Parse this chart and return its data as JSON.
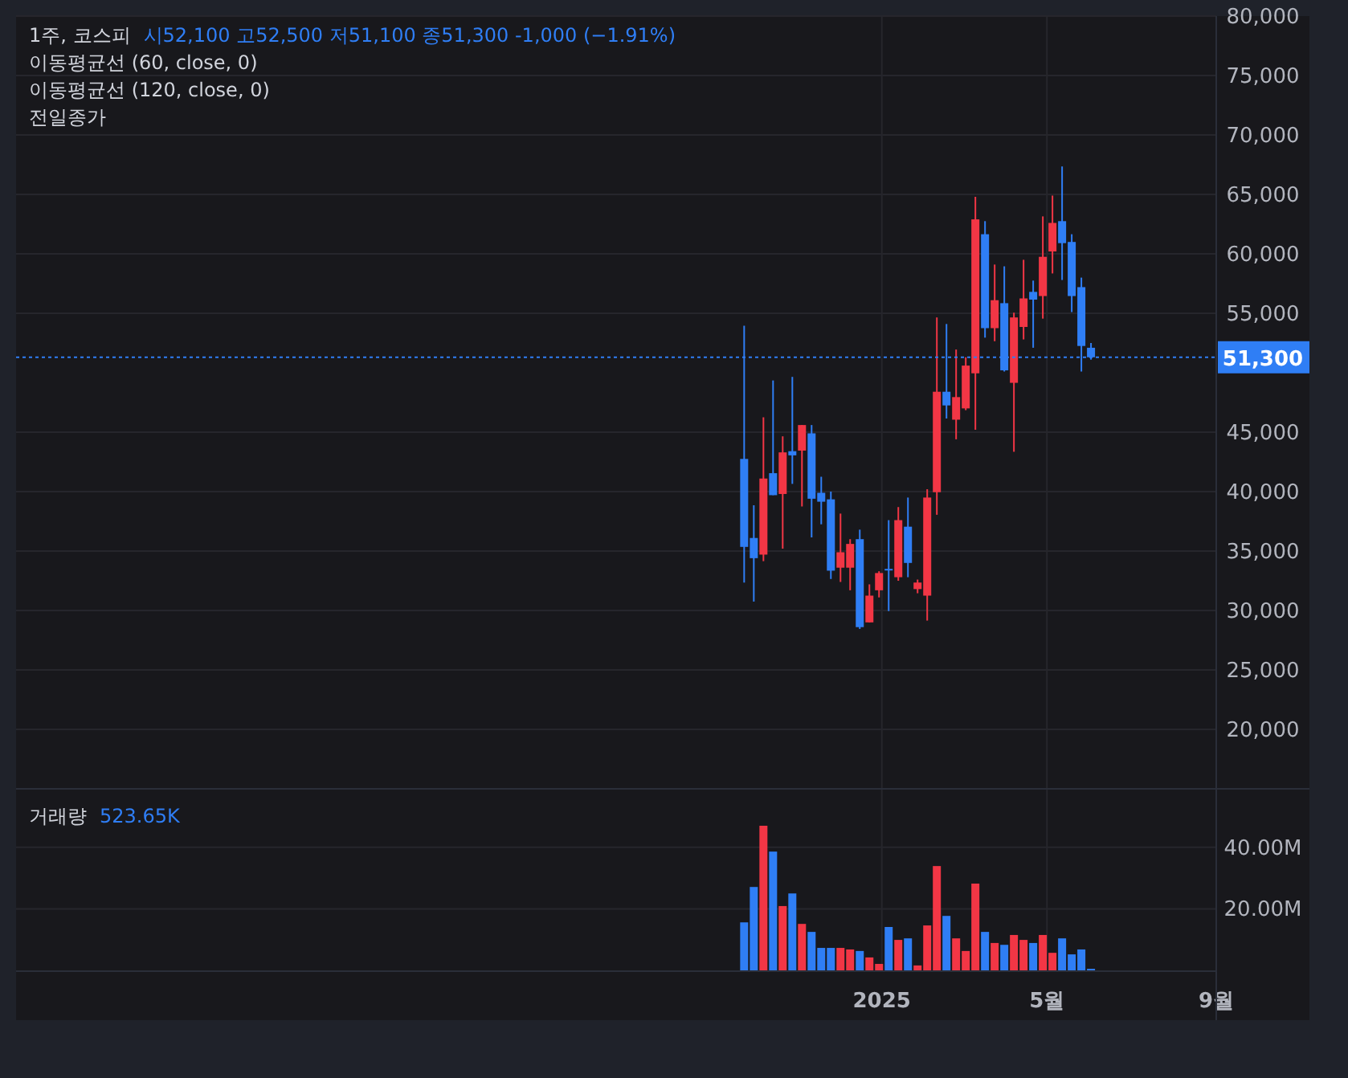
{
  "chart_data": [
    {
      "type": "candlestick",
      "title": "1주, 코스피",
      "annotations": [
        "시52,100 고52,500 저51,100 종51,300 -1,000 (−1.91%)",
        "이동평균선 (60, close, 0)",
        "이동평균선 (120, close, 0)",
        "전일종가"
      ],
      "x": [
        "2024-09-23",
        "2024-09-30",
        "2024-10-07",
        "2024-10-14",
        "2024-10-21",
        "2024-10-28",
        "2024-11-04",
        "2024-11-11",
        "2024-11-18",
        "2024-11-25",
        "2024-12-02",
        "2024-12-09",
        "2024-12-16",
        "2024-12-23",
        "2024-12-30",
        "2025-01-06",
        "2025-01-13",
        "2025-01-20",
        "2025-01-27",
        "2025-02-03",
        "2025-02-10",
        "2025-02-17",
        "2025-02-24",
        "2025-03-03",
        "2025-03-10",
        "2025-03-17",
        "2025-03-24",
        "2025-03-31",
        "2025-04-07",
        "2025-04-14",
        "2025-04-21",
        "2025-04-28",
        "2025-05-05",
        "2025-05-12",
        "2025-05-19",
        "2025-05-26",
        "2025-06-02"
      ],
      "ohlc": [
        [
          42750,
          53950,
          32350,
          35350
        ],
        [
          36100,
          38850,
          30750,
          34400
        ],
        [
          34700,
          46250,
          34150,
          41100
        ],
        [
          41550,
          49350,
          39700,
          39700
        ],
        [
          39800,
          44650,
          35200,
          43300
        ],
        [
          43400,
          49650,
          40650,
          43050
        ],
        [
          43450,
          45600,
          38750,
          45600
        ],
        [
          44900,
          45600,
          36150,
          39400
        ],
        [
          39900,
          41250,
          37250,
          39150
        ],
        [
          39350,
          40000,
          32650,
          33350
        ],
        [
          33600,
          38150,
          32400,
          34900
        ],
        [
          33600,
          36000,
          31700,
          35600
        ],
        [
          36000,
          36800,
          28450,
          28600
        ],
        [
          29000,
          32200,
          29000,
          31250
        ],
        [
          31700,
          33300,
          31100,
          33150
        ],
        [
          33500,
          37600,
          29950,
          33400
        ],
        [
          32800,
          38700,
          32500,
          37600
        ],
        [
          37050,
          39500,
          32800,
          34000
        ],
        [
          31800,
          32600,
          31450,
          32350
        ],
        [
          31250,
          40200,
          29150,
          39500
        ],
        [
          39950,
          54650,
          38050,
          48400
        ],
        [
          48400,
          54100,
          46150,
          47250
        ],
        [
          46050,
          51950,
          44400,
          47950
        ],
        [
          47000,
          51300,
          46850,
          50600
        ],
        [
          49950,
          64800,
          45200,
          62900
        ],
        [
          61650,
          62750,
          52950,
          53750
        ],
        [
          53750,
          59100,
          52650,
          56100
        ],
        [
          55850,
          58950,
          50100,
          50200
        ],
        [
          49150,
          55050,
          43350,
          54650
        ],
        [
          53850,
          59500,
          52800,
          56250
        ],
        [
          56800,
          57750,
          52100,
          56150
        ],
        [
          56450,
          63150,
          54550,
          59750
        ],
        [
          60200,
          64900,
          58350,
          62600
        ],
        [
          62750,
          67350,
          57800,
          60900
        ],
        [
          61000,
          61650,
          55100,
          56450
        ],
        [
          57200,
          58000,
          50100,
          52250
        ],
        [
          52100,
          52500,
          51100,
          51300
        ]
      ],
      "colors": [
        "#2f7ef5",
        "#2f7ef5",
        "#f23645",
        "#2f7ef5",
        "#f23645",
        "#2f7ef5",
        "#f23645",
        "#2f7ef5",
        "#2f7ef5",
        "#2f7ef5",
        "#f23645",
        "#f23645",
        "#2f7ef5",
        "#f23645",
        "#f23645",
        "#2f7ef5",
        "#f23645",
        "#2f7ef5",
        "#f23645",
        "#f23645",
        "#f23645",
        "#2f7ef5",
        "#f23645",
        "#f23645",
        "#f23645",
        "#2f7ef5",
        "#f23645",
        "#2f7ef5",
        "#f23645",
        "#f23645",
        "#2f7ef5",
        "#f23645",
        "#f23645",
        "#2f7ef5",
        "#2f7ef5",
        "#2f7ef5",
        "#2f7ef5"
      ],
      "xlim": [
        "2023-04-13",
        "2025-09-01"
      ],
      "ylim": [
        15000,
        80000
      ],
      "yticks": [
        {
          "value": 20000,
          "label": "20,000"
        },
        {
          "value": 25000,
          "label": "25,000"
        },
        {
          "value": 30000,
          "label": "30,000"
        },
        {
          "value": 35000,
          "label": "35,000"
        },
        {
          "value": 40000,
          "label": "40,000"
        },
        {
          "value": 45000,
          "label": "45,000"
        },
        {
          "value": 55000,
          "label": "55,000"
        },
        {
          "value": 60000,
          "label": "60,000"
        },
        {
          "value": 65000,
          "label": "65,000"
        },
        {
          "value": 70000,
          "label": "70,000"
        },
        {
          "value": 75000,
          "label": "75,000"
        },
        {
          "value": 80000,
          "label": "80,000"
        }
      ],
      "xticks": [
        {
          "value": "2025-01-01",
          "label": null
        },
        {
          "value": "2025-05-01",
          "label": null
        },
        {
          "value": "2025-09-01",
          "label": null
        }
      ],
      "ref_lines": [
        {
          "axis": "y",
          "value": 51300,
          "label": "51,300",
          "color": "#2f7ef5",
          "line_style": "dotted"
        }
      ],
      "grid": true,
      "tick_labels": "y"
    },
    {
      "type": "bar",
      "title": "거래량",
      "annotations": [
        "523.65K"
      ],
      "x": [
        "2024-09-23",
        "2024-09-30",
        "2024-10-07",
        "2024-10-14",
        "2024-10-21",
        "2024-10-28",
        "2024-11-04",
        "2024-11-11",
        "2024-11-18",
        "2024-11-25",
        "2024-12-02",
        "2024-12-09",
        "2024-12-16",
        "2024-12-23",
        "2024-12-30",
        "2025-01-06",
        "2025-01-13",
        "2025-01-20",
        "2025-01-27",
        "2025-02-03",
        "2025-02-10",
        "2025-02-17",
        "2025-02-24",
        "2025-03-03",
        "2025-03-10",
        "2025-03-17",
        "2025-03-24",
        "2025-03-31",
        "2025-04-07",
        "2025-04-14",
        "2025-04-21",
        "2025-04-28",
        "2025-05-05",
        "2025-05-12",
        "2025-05-19",
        "2025-05-26",
        "2025-06-02"
      ],
      "values": [
        15.6,
        27.1,
        47.0,
        38.6,
        20.9,
        25.0,
        15.1,
        12.5,
        7.3,
        7.3,
        7.3,
        6.8,
        6.3,
        4.2,
        2.1,
        14.1,
        9.9,
        10.4,
        1.6,
        14.6,
        33.9,
        17.7,
        10.4,
        6.3,
        28.2,
        12.5,
        8.9,
        8.3,
        11.5,
        9.9,
        8.9,
        11.5,
        5.7,
        10.4,
        5.2,
        6.8,
        0.5
      ],
      "colors": [
        "#2f7ef5",
        "#2f7ef5",
        "#f23645",
        "#2f7ef5",
        "#f23645",
        "#2f7ef5",
        "#f23645",
        "#2f7ef5",
        "#2f7ef5",
        "#2f7ef5",
        "#f23645",
        "#f23645",
        "#2f7ef5",
        "#f23645",
        "#f23645",
        "#2f7ef5",
        "#f23645",
        "#2f7ef5",
        "#f23645",
        "#f23645",
        "#f23645",
        "#2f7ef5",
        "#f23645",
        "#f23645",
        "#f23645",
        "#2f7ef5",
        "#f23645",
        "#2f7ef5",
        "#f23645",
        "#f23645",
        "#2f7ef5",
        "#f23645",
        "#f23645",
        "#2f7ef5",
        "#2f7ef5",
        "#2f7ef5",
        "#2f7ef5"
      ],
      "xlim": [
        "2023-04-13",
        "2025-09-01"
      ],
      "ylim": [
        0,
        59
      ],
      "yticks": [
        {
          "value": 20,
          "label": "20.00M"
        },
        {
          "value": 40,
          "label": "40.00M"
        }
      ],
      "xticks": [
        {
          "value": "2025-01-01",
          "label": "2025"
        },
        {
          "value": "2025-05-01",
          "label": "5월"
        },
        {
          "value": "2025-09-01",
          "label": "9월"
        }
      ],
      "grid": true
    }
  ]
}
